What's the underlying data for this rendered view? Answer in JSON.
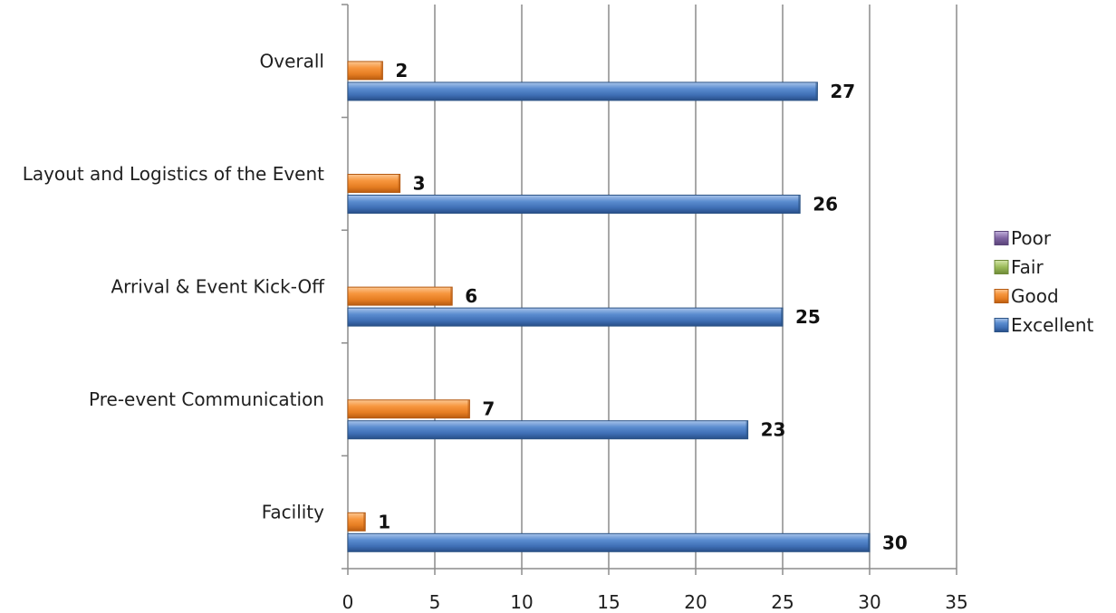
{
  "chart_data": {
    "type": "bar",
    "orientation": "horizontal",
    "title": "",
    "xlabel": "",
    "ylabel": "",
    "categories": [
      "Facility",
      "Pre-event Communication",
      "Arrival & Event Kick-Off",
      "Layout and Logistics of the Event",
      "Overall"
    ],
    "series": [
      {
        "name": "Excellent",
        "values": [
          30,
          23,
          25,
          26,
          27
        ],
        "color": "#4F81BD"
      },
      {
        "name": "Good",
        "values": [
          1,
          7,
          6,
          3,
          2
        ],
        "color": "#F79646"
      },
      {
        "name": "Fair",
        "values": [
          null,
          null,
          null,
          null,
          null
        ],
        "color": "#9BBB59"
      },
      {
        "name": "Poor",
        "values": [
          null,
          null,
          null,
          null,
          null
        ],
        "color": "#8064A2"
      }
    ],
    "legend_order": [
      "Poor",
      "Fair",
      "Good",
      "Excellent"
    ],
    "xlim": [
      0,
      35
    ],
    "xticks": [
      "0",
      "5",
      "10",
      "15",
      "20",
      "25",
      "30",
      "35"
    ],
    "grid": "vertical",
    "legend": "right",
    "data_labels": true
  }
}
